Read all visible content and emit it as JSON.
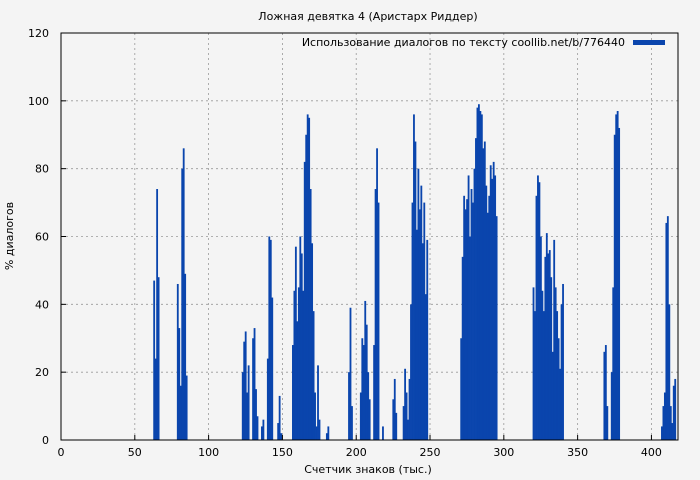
{
  "chart_data": {
    "type": "bar",
    "title": "Ложная девятка 4 (Аристарх Риддер)",
    "xlabel": "Счетчик знаков (тыс.)",
    "ylabel": "% диалогов",
    "xlim": [
      0,
      418
    ],
    "ylim": [
      0,
      120
    ],
    "xticks": [
      0,
      50,
      100,
      150,
      200,
      250,
      300,
      350,
      400
    ],
    "yticks": [
      0,
      20,
      40,
      60,
      80,
      100,
      120
    ],
    "grid": true,
    "legend_position": "top-right",
    "bar_color": "#0a45ad",
    "series": [
      {
        "name": "Использование диалогов по тексту coollib.net/b/776440",
        "points": [
          [
            62,
            0
          ],
          [
            63,
            47
          ],
          [
            64,
            24
          ],
          [
            65,
            74
          ],
          [
            66,
            48
          ],
          [
            67,
            0
          ],
          [
            78,
            0
          ],
          [
            79,
            46
          ],
          [
            80,
            33
          ],
          [
            81,
            16
          ],
          [
            82,
            80
          ],
          [
            83,
            86
          ],
          [
            84,
            49
          ],
          [
            85,
            19
          ],
          [
            86,
            0
          ],
          [
            122,
            0
          ],
          [
            123,
            20
          ],
          [
            124,
            29
          ],
          [
            125,
            32
          ],
          [
            126,
            14
          ],
          [
            127,
            22
          ],
          [
            128,
            0
          ],
          [
            130,
            30
          ],
          [
            131,
            33
          ],
          [
            132,
            15
          ],
          [
            133,
            7
          ],
          [
            134,
            0
          ],
          [
            136,
            4
          ],
          [
            137,
            6
          ],
          [
            138,
            0
          ],
          [
            140,
            24
          ],
          [
            141,
            60
          ],
          [
            142,
            59
          ],
          [
            143,
            42
          ],
          [
            144,
            0
          ],
          [
            146,
            0
          ],
          [
            147,
            5
          ],
          [
            148,
            13
          ],
          [
            149,
            2
          ],
          [
            150,
            0
          ],
          [
            157,
            28
          ],
          [
            158,
            44
          ],
          [
            159,
            57
          ],
          [
            160,
            35
          ],
          [
            161,
            45
          ],
          [
            162,
            60
          ],
          [
            163,
            55
          ],
          [
            164,
            44
          ],
          [
            165,
            82
          ],
          [
            166,
            90
          ],
          [
            167,
            96
          ],
          [
            168,
            95
          ],
          [
            169,
            74
          ],
          [
            170,
            58
          ],
          [
            171,
            38
          ],
          [
            172,
            14
          ],
          [
            173,
            4
          ],
          [
            174,
            22
          ],
          [
            175,
            6
          ],
          [
            176,
            0
          ],
          [
            180,
            2
          ],
          [
            181,
            4
          ],
          [
            182,
            0
          ],
          [
            195,
            20
          ],
          [
            196,
            39
          ],
          [
            197,
            10
          ],
          [
            198,
            0
          ],
          [
            203,
            14
          ],
          [
            204,
            30
          ],
          [
            205,
            28
          ],
          [
            206,
            41
          ],
          [
            207,
            34
          ],
          [
            208,
            20
          ],
          [
            209,
            12
          ],
          [
            210,
            0
          ],
          [
            212,
            28
          ],
          [
            213,
            74
          ],
          [
            214,
            86
          ],
          [
            215,
            70
          ],
          [
            216,
            0
          ],
          [
            218,
            4
          ],
          [
            219,
            0
          ],
          [
            225,
            12
          ],
          [
            226,
            18
          ],
          [
            227,
            8
          ],
          [
            228,
            0
          ],
          [
            232,
            10
          ],
          [
            233,
            21
          ],
          [
            234,
            14
          ],
          [
            235,
            6
          ],
          [
            236,
            18
          ],
          [
            237,
            40
          ],
          [
            238,
            70
          ],
          [
            239,
            96
          ],
          [
            240,
            88
          ],
          [
            241,
            62
          ],
          [
            242,
            80
          ],
          [
            243,
            68
          ],
          [
            244,
            75
          ],
          [
            245,
            58
          ],
          [
            246,
            70
          ],
          [
            247,
            43
          ],
          [
            248,
            59
          ],
          [
            249,
            0
          ],
          [
            270,
            0
          ],
          [
            271,
            30
          ],
          [
            272,
            54
          ],
          [
            273,
            72
          ],
          [
            274,
            68
          ],
          [
            275,
            71
          ],
          [
            276,
            78
          ],
          [
            277,
            60
          ],
          [
            278,
            74
          ],
          [
            279,
            70
          ],
          [
            280,
            80
          ],
          [
            281,
            89
          ],
          [
            282,
            98
          ],
          [
            283,
            99
          ],
          [
            284,
            97
          ],
          [
            285,
            96
          ],
          [
            286,
            86
          ],
          [
            287,
            88
          ],
          [
            288,
            75
          ],
          [
            289,
            67
          ],
          [
            290,
            72
          ],
          [
            291,
            81
          ],
          [
            292,
            77
          ],
          [
            293,
            82
          ],
          [
            294,
            78
          ],
          [
            295,
            66
          ],
          [
            296,
            0
          ],
          [
            319,
            0
          ],
          [
            320,
            45
          ],
          [
            321,
            38
          ],
          [
            322,
            72
          ],
          [
            323,
            78
          ],
          [
            324,
            76
          ],
          [
            325,
            60
          ],
          [
            326,
            44
          ],
          [
            327,
            38
          ],
          [
            328,
            54
          ],
          [
            329,
            61
          ],
          [
            330,
            55
          ],
          [
            331,
            56
          ],
          [
            332,
            48
          ],
          [
            333,
            26
          ],
          [
            334,
            59
          ],
          [
            335,
            45
          ],
          [
            336,
            38
          ],
          [
            337,
            30
          ],
          [
            338,
            21
          ],
          [
            339,
            40
          ],
          [
            340,
            46
          ],
          [
            341,
            0
          ],
          [
            367,
            0
          ],
          [
            368,
            26
          ],
          [
            369,
            28
          ],
          [
            370,
            10
          ],
          [
            371,
            0
          ],
          [
            373,
            20
          ],
          [
            374,
            45
          ],
          [
            375,
            90
          ],
          [
            376,
            96
          ],
          [
            377,
            97
          ],
          [
            378,
            92
          ],
          [
            379,
            0
          ],
          [
            406,
            0
          ],
          [
            407,
            4
          ],
          [
            408,
            10
          ],
          [
            409,
            14
          ],
          [
            410,
            64
          ],
          [
            411,
            66
          ],
          [
            412,
            40
          ],
          [
            413,
            10
          ],
          [
            414,
            5
          ],
          [
            415,
            16
          ],
          [
            416,
            18
          ],
          [
            417,
            0
          ]
        ]
      }
    ]
  }
}
